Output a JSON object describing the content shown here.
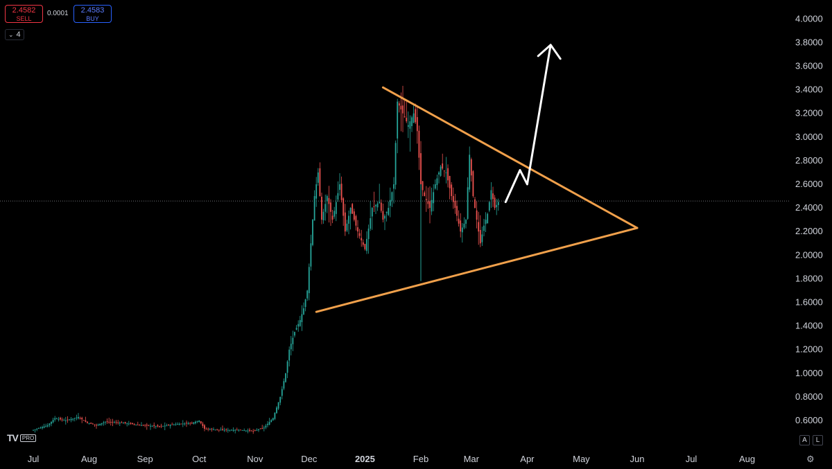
{
  "toolbar": {
    "sell_price": "2.4582",
    "sell_label": "SELL",
    "spread": "0.0001",
    "buy_price": "2.4583",
    "buy_label": "BUY",
    "collapse_count": "4"
  },
  "branding": {
    "logo_text": "TV",
    "badge": "PRO"
  },
  "scale_buttons": {
    "auto": "A",
    "log": "L"
  },
  "colors": {
    "background": "#000000",
    "up_candle": "#26a69a",
    "down_candle": "#ef5350",
    "triangle": "#f0a04b",
    "arrow": "#ffffff",
    "price_line": "#9598a1",
    "axis_text": "#d1d4dc"
  },
  "chart_data": {
    "type": "candlestick",
    "current_price": 2.4583,
    "ylim": [
      0.5,
      4.1
    ],
    "y_ticks": [
      "0.6000",
      "0.8000",
      "1.0000",
      "1.2000",
      "1.4000",
      "1.6000",
      "1.8000",
      "2.0000",
      "2.2000",
      "2.4000",
      "2.6000",
      "2.8000",
      "3.0000",
      "3.2000",
      "3.4000",
      "3.6000",
      "3.8000",
      "4.0000"
    ],
    "x_ticks": [
      {
        "label": "Jul",
        "day": 0
      },
      {
        "label": "Aug",
        "day": 31
      },
      {
        "label": "Sep",
        "day": 62
      },
      {
        "label": "Oct",
        "day": 92
      },
      {
        "label": "Nov",
        "day": 123
      },
      {
        "label": "Dec",
        "day": 153
      },
      {
        "label": "2025",
        "day": 184,
        "bold": true
      },
      {
        "label": "Feb",
        "day": 215
      },
      {
        "label": "Mar",
        "day": 243
      },
      {
        "label": "Apr",
        "day": 274
      },
      {
        "label": "May",
        "day": 304
      },
      {
        "label": "Jun",
        "day": 335
      },
      {
        "label": "Jul",
        "day": 365
      },
      {
        "label": "Aug",
        "day": 396
      }
    ],
    "series_points": [
      [
        0,
        0.52
      ],
      [
        8,
        0.56
      ],
      [
        12,
        0.62
      ],
      [
        18,
        0.6
      ],
      [
        25,
        0.63
      ],
      [
        30,
        0.58
      ],
      [
        35,
        0.56
      ],
      [
        40,
        0.59
      ],
      [
        50,
        0.58
      ],
      [
        60,
        0.56
      ],
      [
        70,
        0.55
      ],
      [
        80,
        0.57
      ],
      [
        88,
        0.58
      ],
      [
        92,
        0.6
      ],
      [
        95,
        0.53
      ],
      [
        105,
        0.52
      ],
      [
        115,
        0.52
      ],
      [
        122,
        0.51
      ],
      [
        128,
        0.54
      ],
      [
        133,
        0.62
      ],
      [
        137,
        0.8
      ],
      [
        140,
        1.0
      ],
      [
        142,
        1.2
      ],
      [
        145,
        1.35
      ],
      [
        148,
        1.45
      ],
      [
        150,
        1.55
      ],
      [
        152,
        1.7
      ],
      [
        154,
        2.1
      ],
      [
        156,
        2.5
      ],
      [
        158,
        2.7
      ],
      [
        160,
        2.3
      ],
      [
        163,
        2.5
      ],
      [
        166,
        2.3
      ],
      [
        170,
        2.6
      ],
      [
        173,
        2.2
      ],
      [
        176,
        2.4
      ],
      [
        180,
        2.2
      ],
      [
        184,
        2.05
      ],
      [
        188,
        2.4
      ],
      [
        192,
        2.45
      ],
      [
        194,
        2.3
      ],
      [
        197,
        2.4
      ],
      [
        200,
        2.6
      ],
      [
        202,
        3.3
      ],
      [
        205,
        3.2
      ],
      [
        208,
        3.1
      ],
      [
        211,
        3.2
      ],
      [
        213,
        3.05
      ],
      [
        215,
        2.6
      ],
      [
        217,
        2.5
      ],
      [
        220,
        2.4
      ],
      [
        223,
        2.6
      ],
      [
        226,
        2.75
      ],
      [
        229,
        2.7
      ],
      [
        232,
        2.5
      ],
      [
        234,
        2.4
      ],
      [
        237,
        2.2
      ],
      [
        240,
        2.3
      ],
      [
        242,
        2.85
      ],
      [
        244,
        2.5
      ],
      [
        246,
        2.3
      ],
      [
        248,
        2.1
      ],
      [
        250,
        2.25
      ],
      [
        252,
        2.35
      ],
      [
        254,
        2.55
      ],
      [
        256,
        2.4
      ],
      [
        258,
        2.45
      ]
    ],
    "annotations": [
      {
        "type": "triangle",
        "upper_line": [
          [
            194,
            3.42
          ],
          [
            335,
            2.23
          ]
        ],
        "lower_line": [
          [
            157,
            1.52
          ],
          [
            335,
            2.23
          ]
        ]
      },
      {
        "type": "arrow",
        "points": [
          [
            262,
            2.45
          ],
          [
            270,
            2.72
          ],
          [
            274,
            2.6
          ],
          [
            287,
            3.78
          ]
        ]
      }
    ]
  }
}
